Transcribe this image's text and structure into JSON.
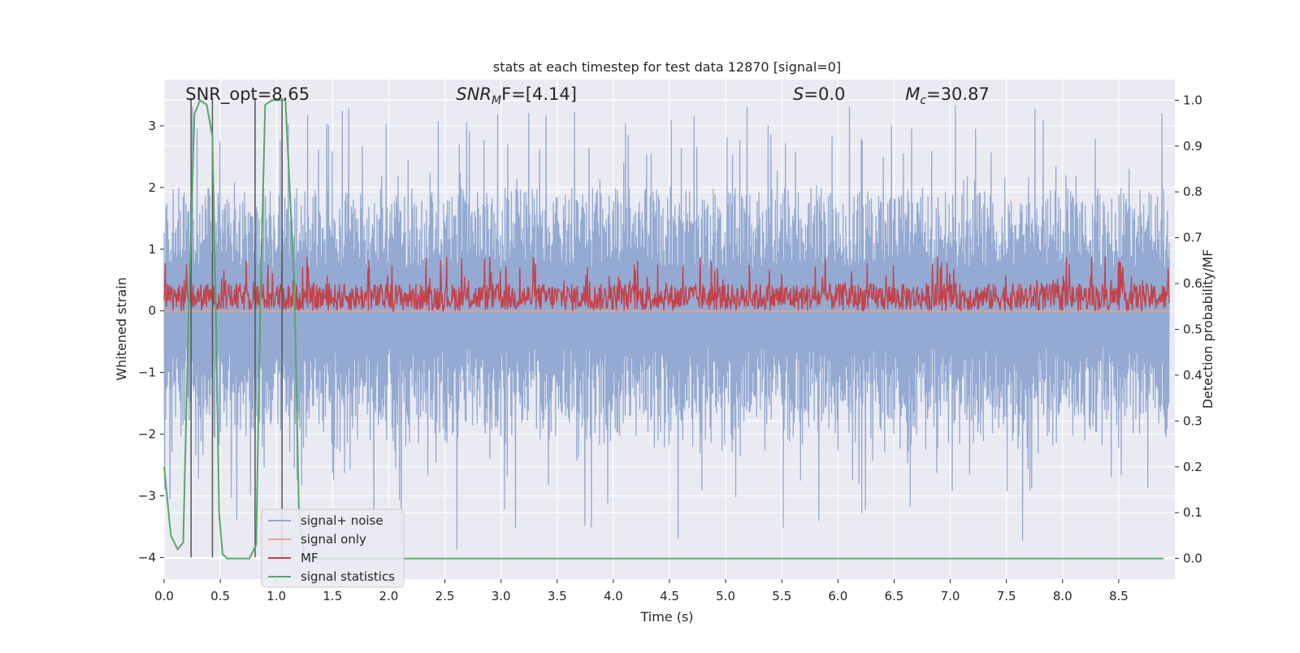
{
  "chart_data": {
    "type": "line",
    "title": "stats at each timestep for test data 12870 [signal=0]",
    "xlabel": "Time (s)",
    "ylabel_left": "Whitened strain",
    "ylabel_right": "Detection probability/MF",
    "xlim": [
      0.0,
      9.0
    ],
    "ylim_left": [
      -4.35,
      3.75
    ],
    "ylim_right": [
      -0.045,
      1.045
    ],
    "x_ticks": [
      0.0,
      0.5,
      1.0,
      1.5,
      2.0,
      2.5,
      3.0,
      3.5,
      4.0,
      4.5,
      5.0,
      5.5,
      6.0,
      6.5,
      7.0,
      7.5,
      8.0,
      8.5
    ],
    "x_tick_labels": [
      "0.0",
      "0.5",
      "1.0",
      "1.5",
      "2.0",
      "2.5",
      "3.0",
      "3.5",
      "4.0",
      "4.5",
      "5.0",
      "5.5",
      "6.0",
      "6.5",
      "7.0",
      "7.5",
      "8.0",
      "8.5"
    ],
    "y_left_ticks": [
      3,
      2,
      1,
      0,
      -1,
      -2,
      -3,
      -4
    ],
    "y_left_tick_labels": [
      "3",
      "2",
      "1",
      "0",
      "−1",
      "−2",
      "−3",
      "−4"
    ],
    "y_right_ticks": [
      1.0,
      0.9,
      0.8,
      0.7,
      0.6,
      0.5,
      0.4,
      0.3,
      0.2,
      0.1,
      0.0
    ],
    "y_right_tick_labels": [
      "1.0",
      "0.9",
      "0.8",
      "0.7",
      "0.6",
      "0.5",
      "0.4",
      "0.3",
      "0.2",
      "0.1",
      "0.0"
    ],
    "grid": true,
    "legend_position": "lower-left",
    "annotations": [
      {
        "id": "snr-opt",
        "x": 0.19,
        "text": "SNR_opt=8.65"
      },
      {
        "id": "snr-mf",
        "x": 2.6,
        "text": "SNR",
        "sub": "M",
        "tail": "F=[4.14]",
        "italic": true
      },
      {
        "id": "s-val",
        "x": 5.6,
        "text": "S",
        "tail": "=0.0",
        "italic": true
      },
      {
        "id": "mc-val",
        "x": 6.6,
        "text": "M",
        "sub": "c",
        "tail": "=30.87",
        "italic": true
      }
    ],
    "vlines": [
      {
        "x": 0.24,
        "y0": -4.0,
        "y1": 3.45
      },
      {
        "x": 0.43,
        "y0": -4.0,
        "y1": 3.45
      },
      {
        "x": 0.81,
        "y0": -4.0,
        "y1": 3.45
      },
      {
        "x": 1.05,
        "y0": -4.0,
        "y1": 3.45
      }
    ],
    "series": [
      {
        "name": "signal+ noise",
        "color": "#8fa6d0",
        "axis": "left",
        "kind": "noise",
        "typical_max": 2.0,
        "typical_min": -2.0,
        "peak_max": 3.35,
        "peak_min": -4.0
      },
      {
        "name": "signal only",
        "color": "#e8a38a",
        "axis": "left",
        "kind": "flat",
        "value": 0.0
      },
      {
        "name": "MF",
        "color": "#c4434b",
        "axis": "right",
        "kind": "noise",
        "low": 0.54,
        "high": 0.6,
        "peak_max": 0.66
      },
      {
        "name": "signal statistics",
        "color": "#55a868",
        "axis": "right",
        "x": [
          0.0,
          0.06,
          0.12,
          0.17,
          0.22,
          0.27,
          0.32,
          0.38,
          0.43,
          0.46,
          0.49,
          0.52,
          0.56,
          0.6,
          0.7,
          0.76,
          0.82,
          0.86,
          0.9,
          0.96,
          1.02,
          1.08,
          1.16,
          1.2,
          1.25,
          1.5,
          2.0,
          3.0,
          4.0,
          5.0,
          6.0,
          7.0,
          8.0,
          8.9
        ],
        "y": [
          0.2,
          0.05,
          0.02,
          0.035,
          0.55,
          0.97,
          1.0,
          0.99,
          0.92,
          0.55,
          0.1,
          0.01,
          0.0,
          0.0,
          0.0,
          0.0,
          0.03,
          0.6,
          0.99,
          1.0,
          1.0,
          1.0,
          0.6,
          0.1,
          0.0,
          0.0,
          0.0,
          0.0,
          0.0,
          0.0,
          0.0,
          0.0,
          0.0,
          0.0
        ]
      }
    ]
  }
}
